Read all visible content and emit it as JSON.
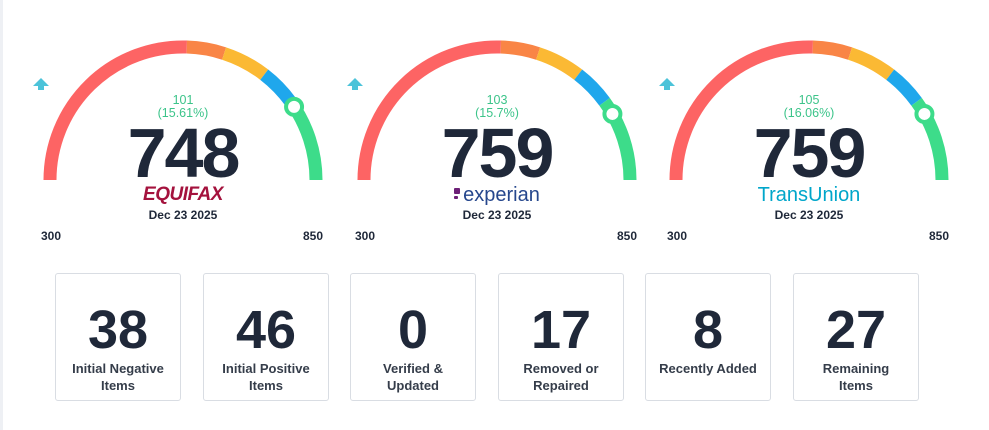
{
  "gauges": [
    {
      "bureau": "Equifax",
      "logo_text": "EQUIFAX",
      "change": "101",
      "change_pct": "(15.61%)",
      "score": "748",
      "date": "Dec 23 2025",
      "min": "300",
      "max": "850"
    },
    {
      "bureau": "Experian",
      "logo_text": "experian",
      "change": "103",
      "change_pct": "(15.7%)",
      "score": "759",
      "date": "Dec 23 2025",
      "min": "300",
      "max": "850"
    },
    {
      "bureau": "TransUnion",
      "logo_text": "TransUnion",
      "change": "105",
      "change_pct": "(16.06%)",
      "score": "759",
      "date": "Dec 23 2025",
      "min": "300",
      "max": "850"
    }
  ],
  "gauge_colors": {
    "red": "#fd6464",
    "orange": "#f98546",
    "yellow": "#fbb934",
    "blue": "#1fa7ec",
    "green": "#3ddc8a",
    "arrow": "#4cc3d9"
  },
  "cards": [
    {
      "value": "38",
      "label_line1": "Initial Negative",
      "label_line2": "Items"
    },
    {
      "value": "46",
      "label_line1": "Initial Positive",
      "label_line2": "Items"
    },
    {
      "value": "0",
      "label_line1": "Verified &",
      "label_line2": "Updated"
    },
    {
      "value": "17",
      "label_line1": "Removed or",
      "label_line2": "Repaired"
    },
    {
      "value": "8",
      "label_line1": "Recently Added",
      "label_line2": ""
    },
    {
      "value": "27",
      "label_line1": "Remaining",
      "label_line2": "Items"
    }
  ]
}
